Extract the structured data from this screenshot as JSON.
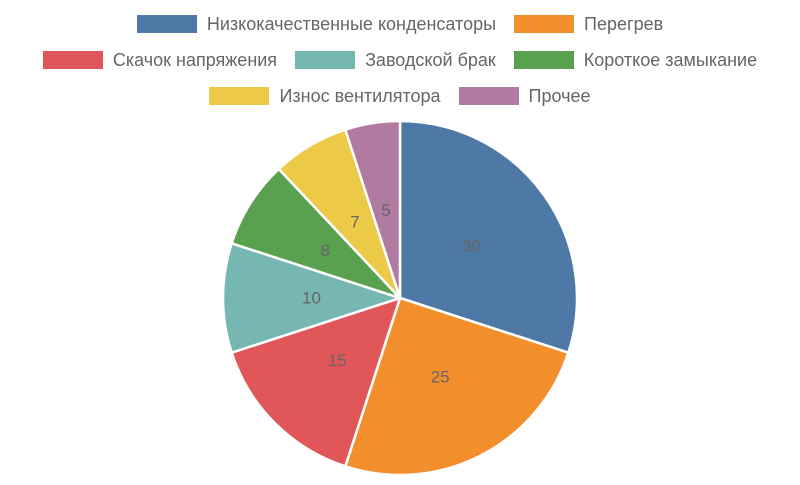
{
  "chart_data": {
    "type": "pie",
    "title": "",
    "categories": [
      "Низкокачественные конденсаторы",
      "Перегрев",
      "Скачок напряжения",
      "Заводской брак",
      "Короткое замыкание",
      "Износ вентилятора",
      "Прочее"
    ],
    "values": [
      30,
      25,
      15,
      10,
      8,
      7,
      5
    ],
    "colors": [
      "#4e79a7",
      "#f28e2b",
      "#e15759",
      "#76b7b2",
      "#59a14f",
      "#edc948",
      "#b07aa1"
    ],
    "legend_position": "top",
    "data_labels": true
  }
}
